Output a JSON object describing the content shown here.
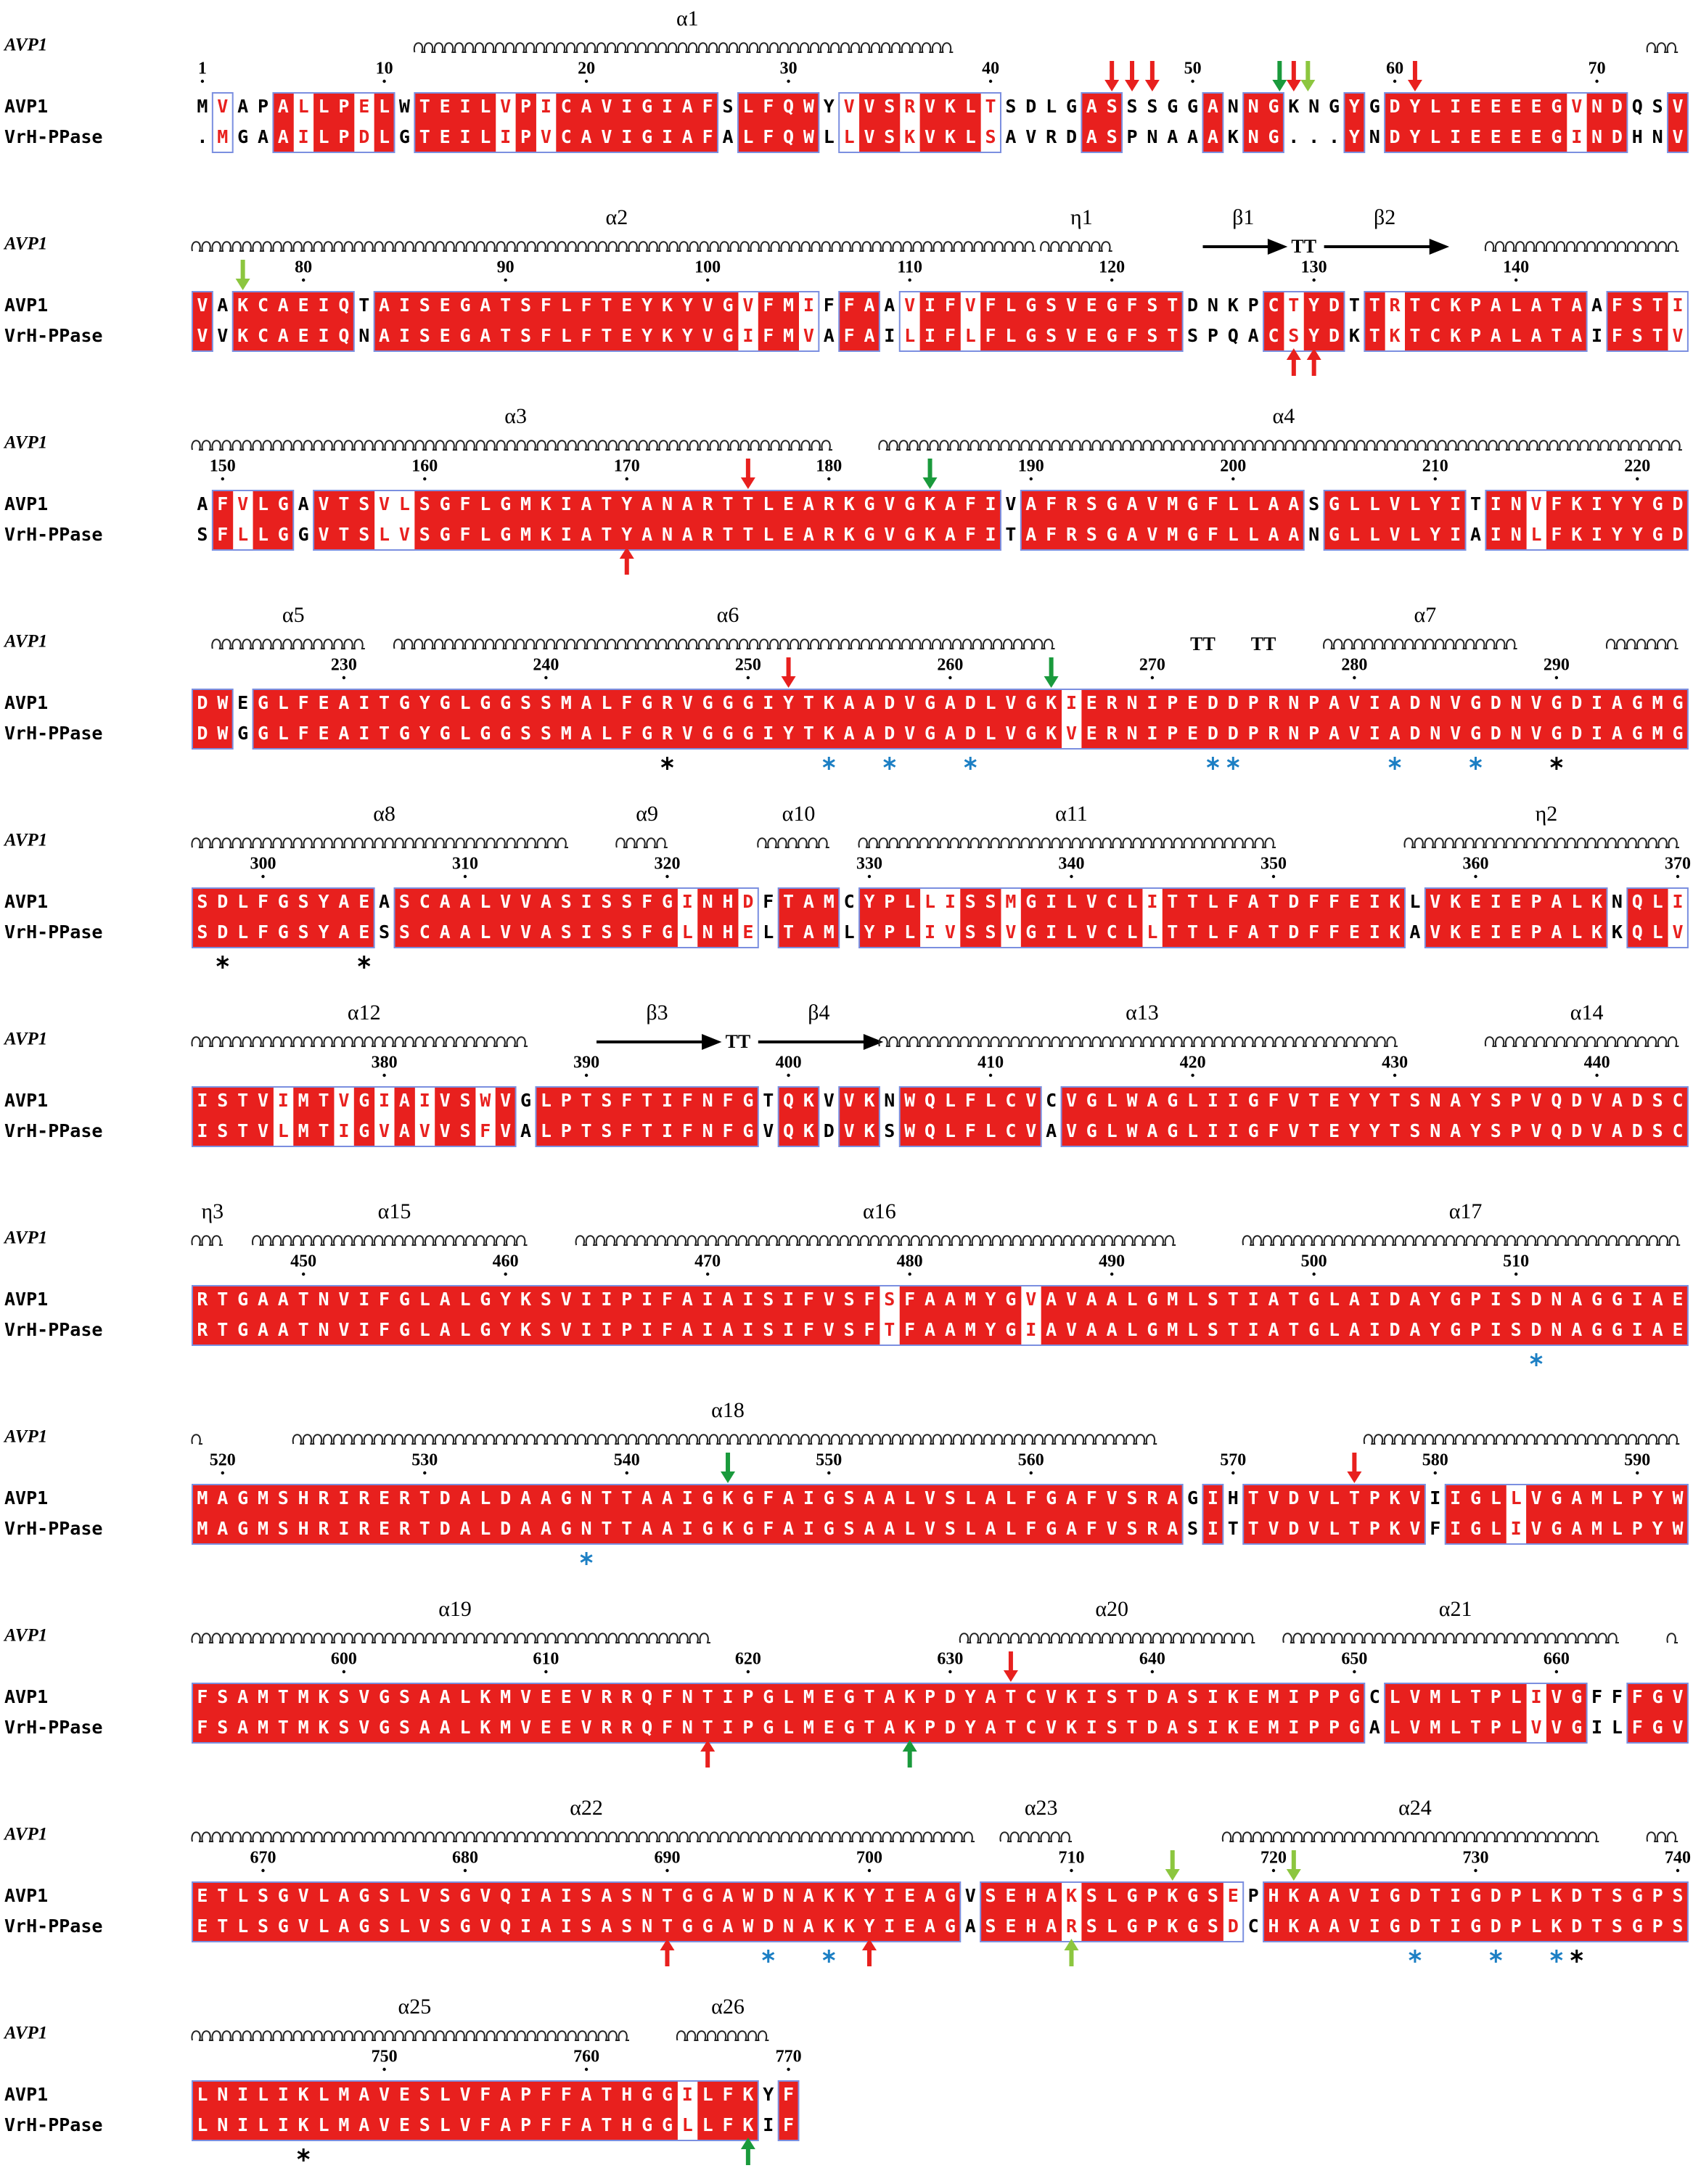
{
  "names": {
    "structure": "AVP1",
    "seq1": "AVP1",
    "seq2": "VrH-PPase"
  },
  "blocks": [
    {
      "structure_labels": [
        "α1"
      ],
      "numbers": [
        1,
        10,
        20,
        30,
        40,
        50,
        60,
        70
      ],
      "AVP1": "MVAPALLPELWTEILVPICAVIGIAFSLFQWYVVSRVKLTSDLGASSSGGANNGKNGYGDYLIEEEEGVNDQSV",
      "VrH_PPase": ".MGAAILPDLGTEILIPVCAVIGIAFALFQWLLVSKVKLSAVRDASPNAAAKNG...YNDYLIEEEEGINDHNV"
    },
    {
      "structure_labels": [
        "α2",
        "η1",
        "β1",
        "TT",
        "β2"
      ],
      "numbers": [
        80,
        90,
        100,
        110,
        120,
        130,
        140
      ],
      "AVP1": "VAKCAEIQTAISEGATSFLFTEYKYVGVFMIFFAAVIFVFLGSVEGFSTDNKPCTYDTTRTCKPALATAAFSTI",
      "VrH_PPase": "VVKCAEIQNAISEGATSFLFTEYKYVGIFMVAFAILIFLFLGSVEGFSTSPQACSYDKTKTCKPALATAIFSTV"
    },
    {
      "structure_labels": [
        "α3",
        "α4"
      ],
      "numbers": [
        150,
        160,
        170,
        180,
        190,
        200,
        210,
        220
      ],
      "AVP1": "AFVLGAVTSVLSGFLGMKIATYANARTTLEARKGVGKAFIVAFRSGAVMGFLLAASGLLVLYITINVFKIYYGD",
      "VrH_PPase": "SFLLGGVTSLVSGFLGMKIATYANARTTLEARKGVGKAFITAFRSGAVMGFLLAANGLLVLYIAINLFKIYYGD"
    },
    {
      "structure_labels": [
        "α5",
        "α6",
        "TT",
        "TT",
        "α7"
      ],
      "numbers": [
        230,
        240,
        250,
        260,
        270,
        280,
        290
      ],
      "AVP1": "DWEGLFEAITGYGLGGSSMALFGRVGGGIYTKAADVGADLVGKIERNIPEDDPRNPAVIADNVGDNVGDIAGMG",
      "VrH_PPase": "DWGGLFEAITGYGLGGSSMALFGRVGGGIYTKAADVGADLVGKVERNIPEDDPRNPAVIADNVGDNVGDIAGMG"
    },
    {
      "structure_labels": [
        "α8",
        "α9",
        "α10",
        "α11",
        "η2"
      ],
      "numbers": [
        300,
        310,
        320,
        330,
        340,
        350,
        360,
        370
      ],
      "AVP1": "SDLFGSYAEASCAALVVASISSFGINHDFTAMCYPLLISSMGILVCLITTLFATDFFEIKLVKEIEPALKNQLI",
      "VrH_PPase": "SDLFGSYAESSCAALVVASISSFGLNHELTAMLYPLIVSSVGILVCLLTTLFATDFFEIKAVKEIEPALKKQLV"
    },
    {
      "structure_labels": [
        "α12",
        "β3",
        "TT",
        "β4",
        "α13",
        "α14"
      ],
      "numbers": [
        380,
        390,
        400,
        410,
        420,
        430,
        440
      ],
      "AVP1": "ISTVIMTVGIAIVSWVGLPTSFTIFNFGTQKVVKNWQLFLCVCVGLWAGLIIGFVTEYYTSNAYSPVQDVADSC",
      "VrH_PPase": "ISTVLMTIGVAVVSFVALPTSFTIFNFGVQKDVKSWQLFLCVAVGLWAGLIIGFVTEYYTSNAYSPVQDVADSC"
    },
    {
      "structure_labels": [
        "η3",
        "α15",
        "α16",
        "α17"
      ],
      "numbers": [
        450,
        460,
        470,
        480,
        490,
        500,
        510
      ],
      "AVP1": "RTGAATNVIFGLALGYKSVIIPIFAIAISIFVSFSFAAMYGVAVAALGMLSTIATGLAIDAYGPISDNAGGIAE",
      "VrH_PPase": "RTGAATNVIFGLALGYKSVIIPIFAIAISIFVSFTFAAMYGIAVAALGMLSTIATGLAIDAYGPISDNAGGIAE"
    },
    {
      "structure_labels": [
        "α18"
      ],
      "numbers": [
        520,
        530,
        540,
        550,
        560,
        570,
        580,
        590
      ],
      "AVP1": "MAGMSHRIRERTDALDAAGNTTAAIGKGFAIGSAALVSLALFGAFVSRAGIHTVDVLTPKVIIGLLVGAMLPYW",
      "VrH_PPase": "MAGMSHRIRERTDALDAAGNTTAAIGKGFAIGSAALVSLALFGAFVSRASITTVDVLTPKVFIGLIVGAMLPYW"
    },
    {
      "structure_labels": [
        "α19",
        "α20",
        "α21"
      ],
      "numbers": [
        600,
        610,
        620,
        630,
        640,
        650,
        660
      ],
      "AVP1": "FSAMTMKSVGSAALKMVEEVRRQFNTIPGLMEGTAKPDYATCVKISTDASIKEMIPPGCLVMLTPLIVGFFFGV",
      "VrH_PPase": "FSAMTMKSVGSAALKMVEEVRRQFNTIPGLMEGTAKPDYATCVKISTDASIKEMIPPGALVMLTPLVVGILFGV"
    },
    {
      "structure_labels": [
        "α22",
        "α23",
        "α24"
      ],
      "numbers": [
        670,
        680,
        690,
        700,
        710,
        720,
        730,
        740
      ],
      "AVP1": "ETLSGVLAGSLVSGVQIAISASNTGGAWDNAKKYIEAGVSEHAKSLGPKGSEPHKAAVIGDTIGDPLKDTSGPS",
      "VrH_PPase": "ETLSGVLAGSLVSGVQIAISASNTGGAWDNAKKYIEAGASEHARSLGPKGSDCHKAAVIGDTIGDPLKDTSGPS"
    },
    {
      "structure_labels": [
        "α25",
        "α26"
      ],
      "numbers": [
        750,
        760,
        770
      ],
      "AVP1": "LNILIKLMAVESLVFAPFFATHGGILFKYF",
      "VrH_PPase": "LNILIKLMAVESLVFAPFFATHGGLLFKIF"
    }
  ]
}
